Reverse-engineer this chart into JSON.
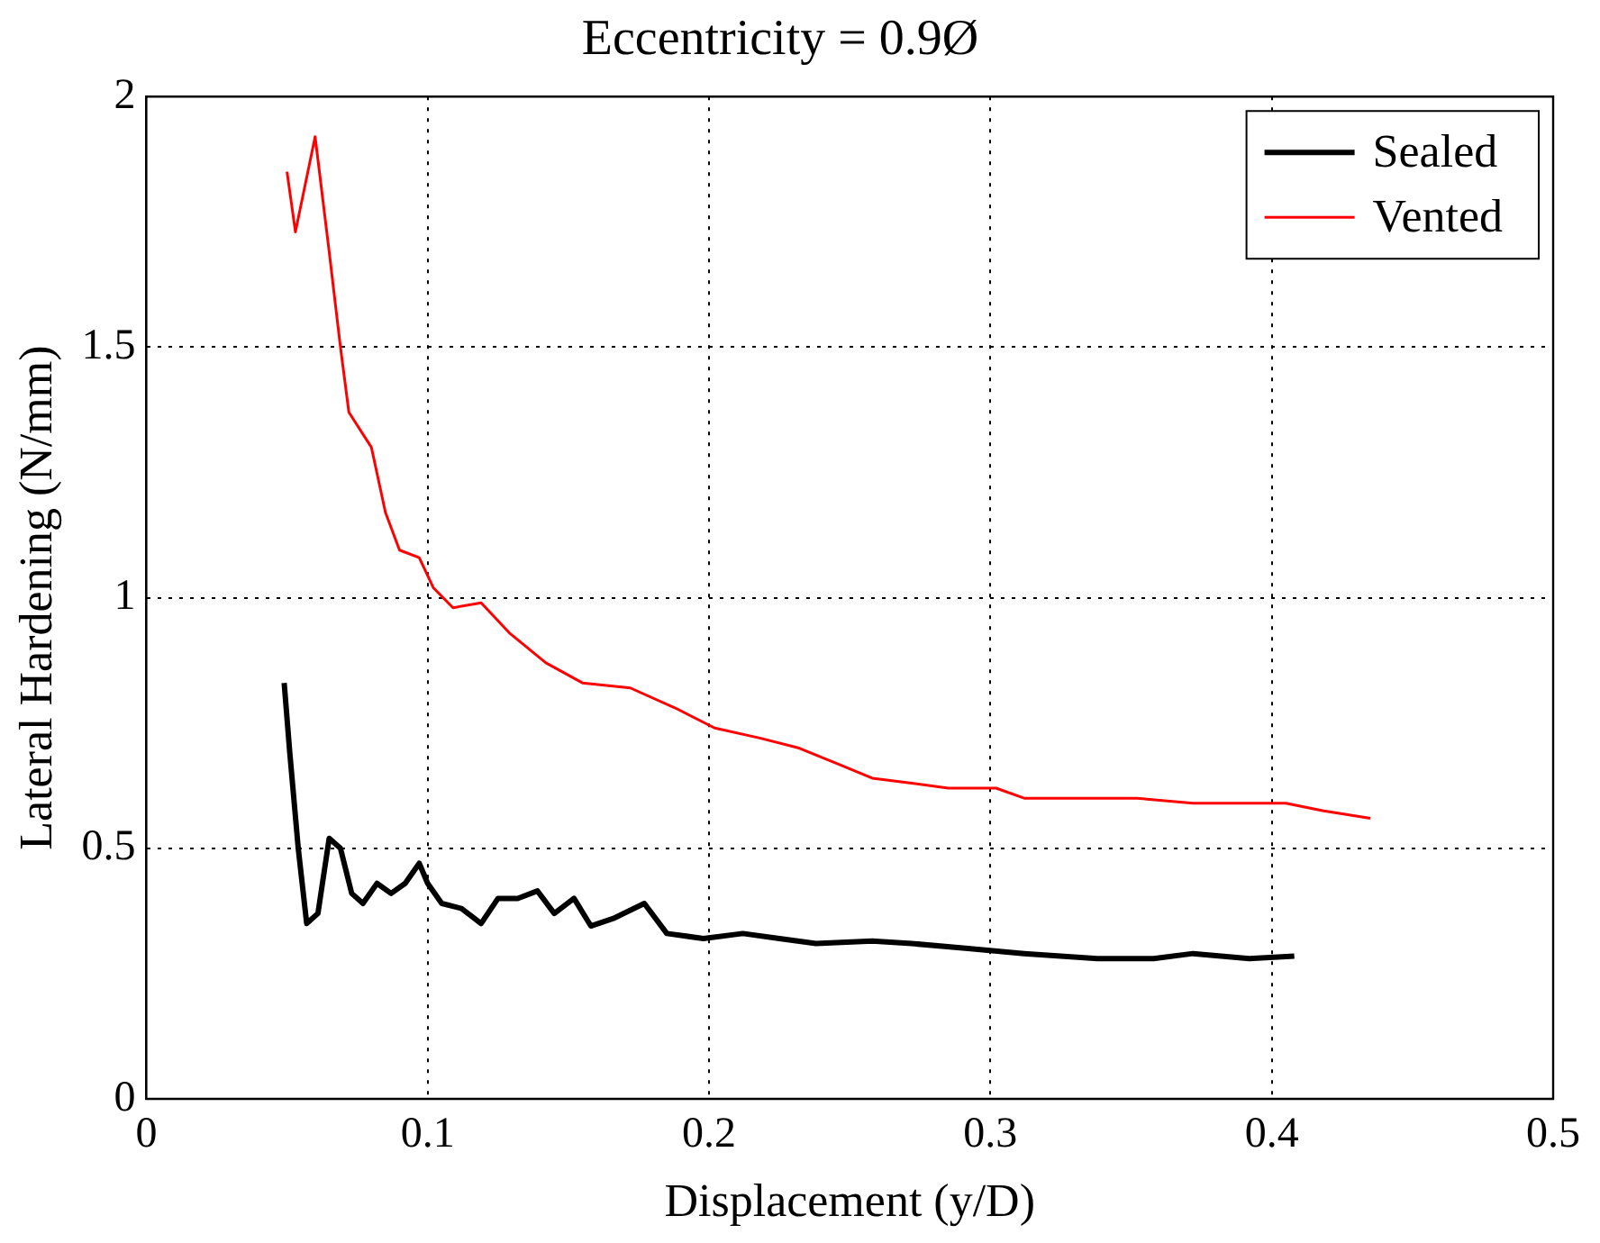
{
  "chart_data": {
    "type": "line",
    "title": "Eccentricity = 0.9Ø",
    "xlabel": "Displacement (y/D)",
    "ylabel": "Lateral Hardening (N/mm)",
    "xlim": [
      0,
      0.5
    ],
    "xticks": [
      0,
      0.1,
      0.2,
      0.3,
      0.4,
      0.5
    ],
    "ylim": [
      0,
      2
    ],
    "yticks": [
      0,
      0.5,
      1,
      1.5,
      2
    ],
    "grid": true,
    "legend": "top right",
    "marker": "none",
    "line_style": "solid",
    "series": [
      {
        "name": "Sealed",
        "color": "#000000",
        "x": [
          0.049,
          0.051,
          0.054,
          0.057,
          0.061,
          0.065,
          0.069,
          0.073,
          0.077,
          0.082,
          0.087,
          0.092,
          0.097,
          0.1,
          0.105,
          0.112,
          0.119,
          0.125,
          0.132,
          0.139,
          0.145,
          0.152,
          0.158,
          0.166,
          0.177,
          0.185,
          0.198,
          0.212,
          0.225,
          0.238,
          0.258,
          0.272,
          0.292,
          0.312,
          0.338,
          0.358,
          0.372,
          0.392,
          0.408
        ],
        "values": [
          0.83,
          0.69,
          0.5,
          0.35,
          0.37,
          0.52,
          0.5,
          0.41,
          0.39,
          0.43,
          0.41,
          0.43,
          0.47,
          0.43,
          0.39,
          0.38,
          0.35,
          0.4,
          0.4,
          0.415,
          0.37,
          0.4,
          0.345,
          0.36,
          0.39,
          0.33,
          0.32,
          0.33,
          0.32,
          0.31,
          0.315,
          0.31,
          0.3,
          0.29,
          0.28,
          0.28,
          0.29,
          0.28,
          0.285
        ]
      },
      {
        "name": "Vented",
        "color": "#ff0000",
        "x": [
          0.05,
          0.053,
          0.06,
          0.065,
          0.069,
          0.072,
          0.08,
          0.085,
          0.09,
          0.097,
          0.102,
          0.109,
          0.119,
          0.129,
          0.142,
          0.155,
          0.172,
          0.188,
          0.202,
          0.218,
          0.232,
          0.245,
          0.258,
          0.272,
          0.285,
          0.302,
          0.312,
          0.332,
          0.352,
          0.372,
          0.392,
          0.405,
          0.418,
          0.435
        ],
        "values": [
          1.85,
          1.73,
          1.92,
          1.69,
          1.5,
          1.37,
          1.3,
          1.17,
          1.095,
          1.08,
          1.02,
          0.98,
          0.99,
          0.93,
          0.87,
          0.83,
          0.82,
          0.78,
          0.74,
          0.72,
          0.7,
          0.67,
          0.64,
          0.63,
          0.62,
          0.62,
          0.6,
          0.6,
          0.6,
          0.59,
          0.59,
          0.59,
          0.575,
          0.56
        ]
      }
    ]
  }
}
